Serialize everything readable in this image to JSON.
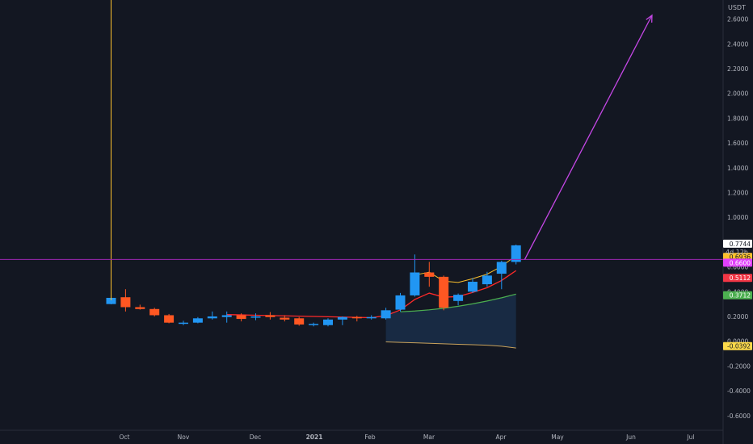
{
  "currency": "USDT",
  "countdown": "4d 12h",
  "colors": {
    "background": "#131722",
    "grid_text": "#b2b5be",
    "axis_line": "#2a2e39",
    "up": "#2196f3",
    "down": "#ff5722",
    "yellow_line": "#fbc02d",
    "purple_line": "#9c27b0",
    "arrow": "#c547e6",
    "ema_red": "#ff2a2a",
    "ema_green": "#4caf50",
    "band_fill": "#1e3a5f",
    "band_line": "#c9a25b"
  },
  "chart_data": {
    "type": "candlestick",
    "timeframe": "weekly",
    "ylim": [
      -0.65,
      2.68
    ],
    "y_ticks": [
      "2.6000",
      "2.4000",
      "2.2000",
      "2.0000",
      "1.8000",
      "1.6000",
      "1.4000",
      "1.2000",
      "1.0000",
      "0.8000",
      "0.6000",
      "0.4000",
      "0.2000",
      "0.0000",
      "-0.2000",
      "-0.4000",
      "-0.6000"
    ],
    "x_ticks": [
      "Oct",
      "Nov",
      "Dec",
      "2021",
      "Feb",
      "Mar",
      "Apr",
      "May",
      "Jun",
      "Jul"
    ],
    "candles": [
      {
        "o": 0.3,
        "h": 0.42,
        "l": 0.298,
        "c": 0.35
      },
      {
        "o": 0.355,
        "h": 0.42,
        "l": 0.24,
        "c": 0.275
      },
      {
        "o": 0.275,
        "h": 0.295,
        "l": 0.255,
        "c": 0.26
      },
      {
        "o": 0.26,
        "h": 0.27,
        "l": 0.2,
        "c": 0.21
      },
      {
        "o": 0.21,
        "h": 0.22,
        "l": 0.145,
        "c": 0.15
      },
      {
        "o": 0.15,
        "h": 0.165,
        "l": 0.13,
        "c": 0.15
      },
      {
        "o": 0.15,
        "h": 0.195,
        "l": 0.145,
        "c": 0.185
      },
      {
        "o": 0.185,
        "h": 0.24,
        "l": 0.175,
        "c": 0.2
      },
      {
        "o": 0.195,
        "h": 0.24,
        "l": 0.15,
        "c": 0.21
      },
      {
        "o": 0.21,
        "h": 0.225,
        "l": 0.16,
        "c": 0.18
      },
      {
        "o": 0.19,
        "h": 0.225,
        "l": 0.17,
        "c": 0.2
      },
      {
        "o": 0.21,
        "h": 0.235,
        "l": 0.175,
        "c": 0.195
      },
      {
        "o": 0.19,
        "h": 0.21,
        "l": 0.16,
        "c": 0.175
      },
      {
        "o": 0.185,
        "h": 0.195,
        "l": 0.125,
        "c": 0.135
      },
      {
        "o": 0.14,
        "h": 0.15,
        "l": 0.12,
        "c": 0.14
      },
      {
        "o": 0.13,
        "h": 0.185,
        "l": 0.12,
        "c": 0.175
      },
      {
        "o": 0.175,
        "h": 0.2,
        "l": 0.13,
        "c": 0.195
      },
      {
        "o": 0.195,
        "h": 0.205,
        "l": 0.16,
        "c": 0.185
      },
      {
        "o": 0.185,
        "h": 0.21,
        "l": 0.175,
        "c": 0.195
      },
      {
        "o": 0.185,
        "h": 0.27,
        "l": 0.175,
        "c": 0.25
      },
      {
        "o": 0.255,
        "h": 0.39,
        "l": 0.24,
        "c": 0.37
      },
      {
        "o": 0.37,
        "h": 0.7,
        "l": 0.36,
        "c": 0.555
      },
      {
        "o": 0.555,
        "h": 0.64,
        "l": 0.44,
        "c": 0.52
      },
      {
        "o": 0.52,
        "h": 0.53,
        "l": 0.25,
        "c": 0.27
      },
      {
        "o": 0.325,
        "h": 0.385,
        "l": 0.29,
        "c": 0.375
      },
      {
        "o": 0.4,
        "h": 0.51,
        "l": 0.39,
        "c": 0.48
      },
      {
        "o": 0.46,
        "h": 0.56,
        "l": 0.44,
        "c": 0.53
      },
      {
        "o": 0.545,
        "h": 0.65,
        "l": 0.42,
        "c": 0.64
      },
      {
        "o": 0.64,
        "h": 0.78,
        "l": 0.62,
        "c": 0.774
      }
    ],
    "price_labels": [
      {
        "text": "0.7744",
        "value": 0.7744,
        "bg": "#ffffff",
        "fg": "#131722"
      },
      {
        "text": "0.6936",
        "value": 0.6936,
        "bg": "#fbc02d",
        "fg": "#131722"
      },
      {
        "text": "0.6600",
        "value": 0.66,
        "bg": "#e040fb",
        "fg": "#ffffff"
      },
      {
        "text": "0.5112",
        "value": 0.5112,
        "bg": "#f23645",
        "fg": "#ffffff"
      },
      {
        "text": "0.3712",
        "value": 0.3712,
        "bg": "#4caf50",
        "fg": "#ffffff"
      },
      {
        "text": "-0.0392",
        "value": -0.0392,
        "bg": "#fbd94a",
        "fg": "#131722"
      }
    ],
    "horizontal_line": 0.66,
    "arrow": {
      "from_index": 28.6,
      "from_value": 0.66,
      "to_index": 37.4,
      "to_value": 2.63
    }
  }
}
